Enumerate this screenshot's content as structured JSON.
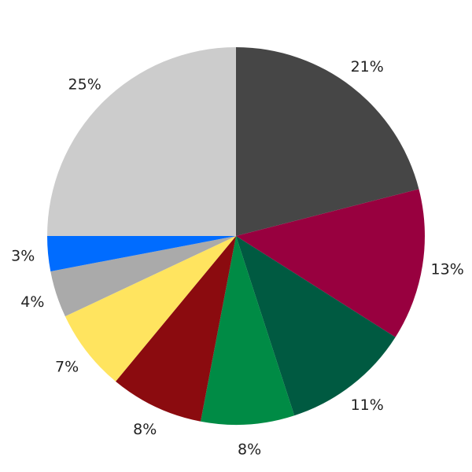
{
  "chart_data": {
    "type": "pie",
    "start": "top",
    "direction": "clockwise",
    "slices": [
      {
        "value": 21,
        "label": "21%",
        "color": "#464646"
      },
      {
        "value": 13,
        "label": "13%",
        "color": "#98003f"
      },
      {
        "value": 11,
        "label": "11%",
        "color": "#005a41"
      },
      {
        "value": 8,
        "label": "8%",
        "color": "#008b45"
      },
      {
        "value": 8,
        "label": "8%",
        "color": "#8b0b0f"
      },
      {
        "value": 7,
        "label": "7%",
        "color": "#ffe45f"
      },
      {
        "value": 4,
        "label": "4%",
        "color": "#aaaaaa"
      },
      {
        "value": 3,
        "label": "3%",
        "color": "#006cff"
      },
      {
        "value": 25,
        "label": "25%",
        "color": "#cccccc"
      }
    ]
  }
}
